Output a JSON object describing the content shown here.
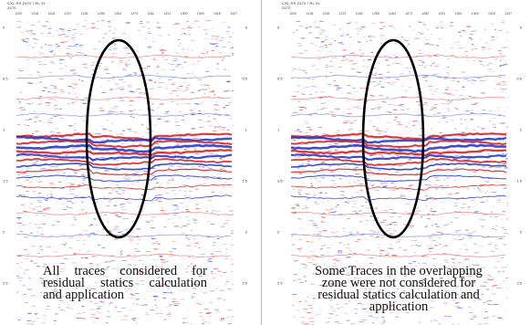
{
  "panels": [
    {
      "id": "left",
      "header_line1": "CXL RS 2470 / RL 91",
      "header_line2": "2470",
      "trace_labels": [
        "1200",
        "1218",
        "1226",
        "1237",
        "1246",
        "1255",
        "1264",
        "1273",
        "1282",
        "1291",
        "1300",
        "1309",
        "1318",
        "1327"
      ],
      "time_axis_labels": [
        "0",
        "0.5",
        "1",
        "1.5",
        "2",
        "2.5"
      ],
      "caption_lines": [
        "All traces considered for",
        "residual statics calculation",
        "and application"
      ]
    },
    {
      "id": "right",
      "header_line1": "CXL RS 2470 / RL 91",
      "header_line2": "2470",
      "trace_labels": [
        "1200",
        "1218",
        "1226",
        "1237",
        "1246",
        "1255",
        "1264",
        "1273",
        "1282",
        "1291",
        "1300",
        "1309",
        "1318",
        "1327"
      ],
      "time_axis_labels": [
        "0",
        "0.5",
        "1",
        "1.5",
        "2",
        "2.5"
      ],
      "caption_lines": [
        "Some Traces in the overlapping",
        "zone were not considered for",
        "residual statics calculation and",
        "application"
      ]
    }
  ],
  "colors": {
    "positive": "#1a2fd0",
    "negative": "#d81818",
    "ellipse": "#000000",
    "background": "#ffffff"
  }
}
